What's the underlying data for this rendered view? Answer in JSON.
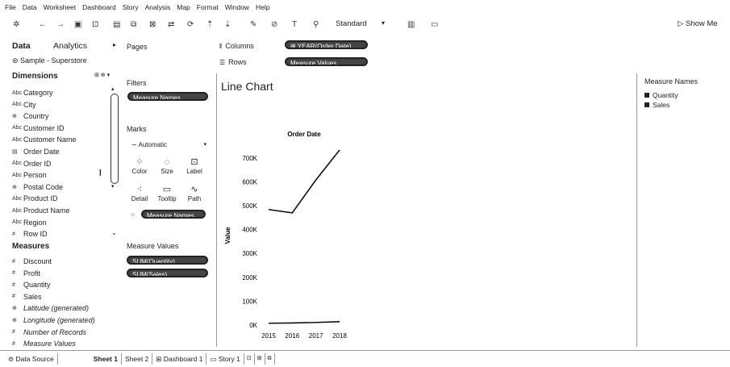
{
  "menu": [
    "File",
    "Data",
    "Worksheet",
    "Dashboard",
    "Story",
    "Analysis",
    "Map",
    "Format",
    "Window",
    "Help"
  ],
  "toolbar": {
    "fit": "Standard",
    "show_me": "Show Me"
  },
  "data_pane": {
    "tab_data": "Data",
    "tab_analytics": "Analytics",
    "datasource": "Sample - Superstore",
    "dimensions_title": "Dimensions",
    "dimensions": [
      {
        "type": "Abc",
        "label": "Category"
      },
      {
        "type": "Abc",
        "label": "City"
      },
      {
        "type": "⊕",
        "label": "Country"
      },
      {
        "type": "Abc",
        "label": "Customer ID"
      },
      {
        "type": "Abc",
        "label": "Customer Name"
      },
      {
        "type": "▤",
        "label": "Order Date"
      },
      {
        "type": "Abc",
        "label": "Order ID"
      },
      {
        "type": "Abc",
        "label": "Person"
      },
      {
        "type": "⊕",
        "label": "Postal Code"
      },
      {
        "type": "Abc",
        "label": "Product ID"
      },
      {
        "type": "Abc",
        "label": "Product Name"
      },
      {
        "type": "Abc",
        "label": "Region"
      },
      {
        "type": "#",
        "label": "Row ID"
      }
    ],
    "measures_title": "Measures",
    "measures": [
      {
        "type": "#",
        "label": "Discount",
        "italic": false
      },
      {
        "type": "#",
        "label": "Profit",
        "italic": false
      },
      {
        "type": "#",
        "label": "Quantity",
        "italic": false
      },
      {
        "type": "#",
        "label": "Sales",
        "italic": false
      },
      {
        "type": "⊕",
        "label": "Latitude (generated)",
        "italic": true
      },
      {
        "type": "⊕",
        "label": "Longitude (generated)",
        "italic": true
      },
      {
        "type": "#",
        "label": "Number of Records",
        "italic": true
      },
      {
        "type": "#",
        "label": "Measure Values",
        "italic": true
      }
    ]
  },
  "shelves": {
    "pages": "Pages",
    "filters": "Filters",
    "filter_pill": "Measure Names",
    "marks": "Marks",
    "mark_type": "Automatic",
    "mark_buttons": [
      {
        "icon": "⁘",
        "label": "Color"
      },
      {
        "icon": "◌",
        "label": "Size"
      },
      {
        "icon": "⊡",
        "label": "Label"
      },
      {
        "icon": "⁖",
        "label": "Detail"
      },
      {
        "icon": "▭",
        "label": "Tooltip"
      },
      {
        "icon": "∿",
        "label": "Path"
      }
    ],
    "marks_pill": "Measure Names",
    "measure_values": "Measure Values",
    "mv_pills": [
      "SUM(Quantity)",
      "SUM(Sales)"
    ],
    "columns_label": "Columns",
    "rows_label": "Rows",
    "columns_pill": "⊞ YEAR(Order Date)",
    "rows_pill": "Measure Values"
  },
  "chart_data": {
    "type": "line",
    "title": "Line Chart",
    "header": "Order Date",
    "ylabel": "Value",
    "x": [
      "2015",
      "2016",
      "2017",
      "2018"
    ],
    "ylim": [
      0,
      750000
    ],
    "yticks": [
      0,
      100000,
      200000,
      300000,
      400000,
      500000,
      600000,
      700000
    ],
    "ytick_labels": [
      "0K",
      "100K",
      "200K",
      "300K",
      "400K",
      "500K",
      "600K",
      "700K"
    ],
    "series": [
      {
        "name": "Quantity",
        "values": [
          7600,
          8700,
          11000,
          14100
        ]
      },
      {
        "name": "Sales",
        "values": [
          484000,
          470000,
          608000,
          733000
        ]
      }
    ],
    "grid": false
  },
  "legend": {
    "title": "Measure Names",
    "items": [
      "Quantity",
      "Sales"
    ]
  },
  "tabs": {
    "data_source": "Data Source",
    "sheets": [
      "Sheet 1",
      "Sheet 2"
    ],
    "dashboard": "Dashboard 1",
    "story": "Story 1"
  }
}
